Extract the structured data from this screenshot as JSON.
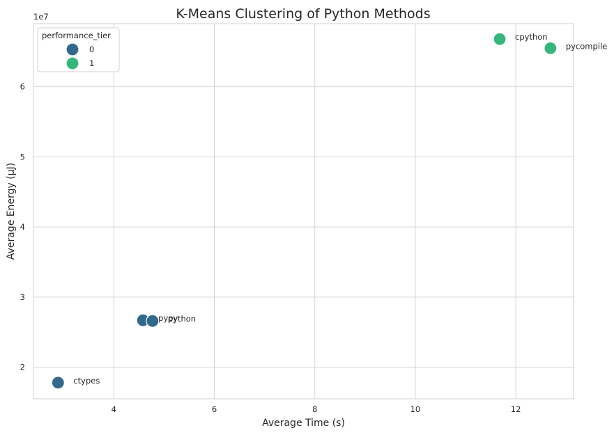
{
  "chart_data": {
    "type": "scatter",
    "title": "K-Means Clustering of Python Methods",
    "xlabel": "Average Time (s)",
    "ylabel": "Average Energy (µJ)",
    "y_offset_label": "1e7",
    "xlim": [
      2.4,
      13.15
    ],
    "ylim": [
      15500000,
      69000000
    ],
    "x_ticks": [
      4,
      6,
      8,
      10,
      12
    ],
    "x_tick_labels": [
      "4",
      "6",
      "8",
      "10",
      "12"
    ],
    "y_ticks": [
      20000000,
      30000000,
      40000000,
      50000000,
      60000000
    ],
    "y_tick_labels": [
      "2",
      "3",
      "4",
      "5",
      "6"
    ],
    "grid": true,
    "legend": {
      "title": "performance_tier",
      "placement": "top-left",
      "entries": [
        {
          "label": "0",
          "color": "#31688e"
        },
        {
          "label": "1",
          "color": "#35b779"
        }
      ]
    },
    "points": [
      {
        "label": "cpython",
        "x": 11.68,
        "y": 66800000,
        "tier": 1
      },
      {
        "label": "pycompile",
        "x": 12.69,
        "y": 65500000,
        "tier": 1
      },
      {
        "label": "pypy",
        "x": 4.58,
        "y": 26700000,
        "tier": 0
      },
      {
        "label": "python",
        "x": 4.77,
        "y": 26600000,
        "tier": 0
      },
      {
        "label": "ctypes",
        "x": 2.89,
        "y": 17800000,
        "tier": 0
      }
    ]
  }
}
